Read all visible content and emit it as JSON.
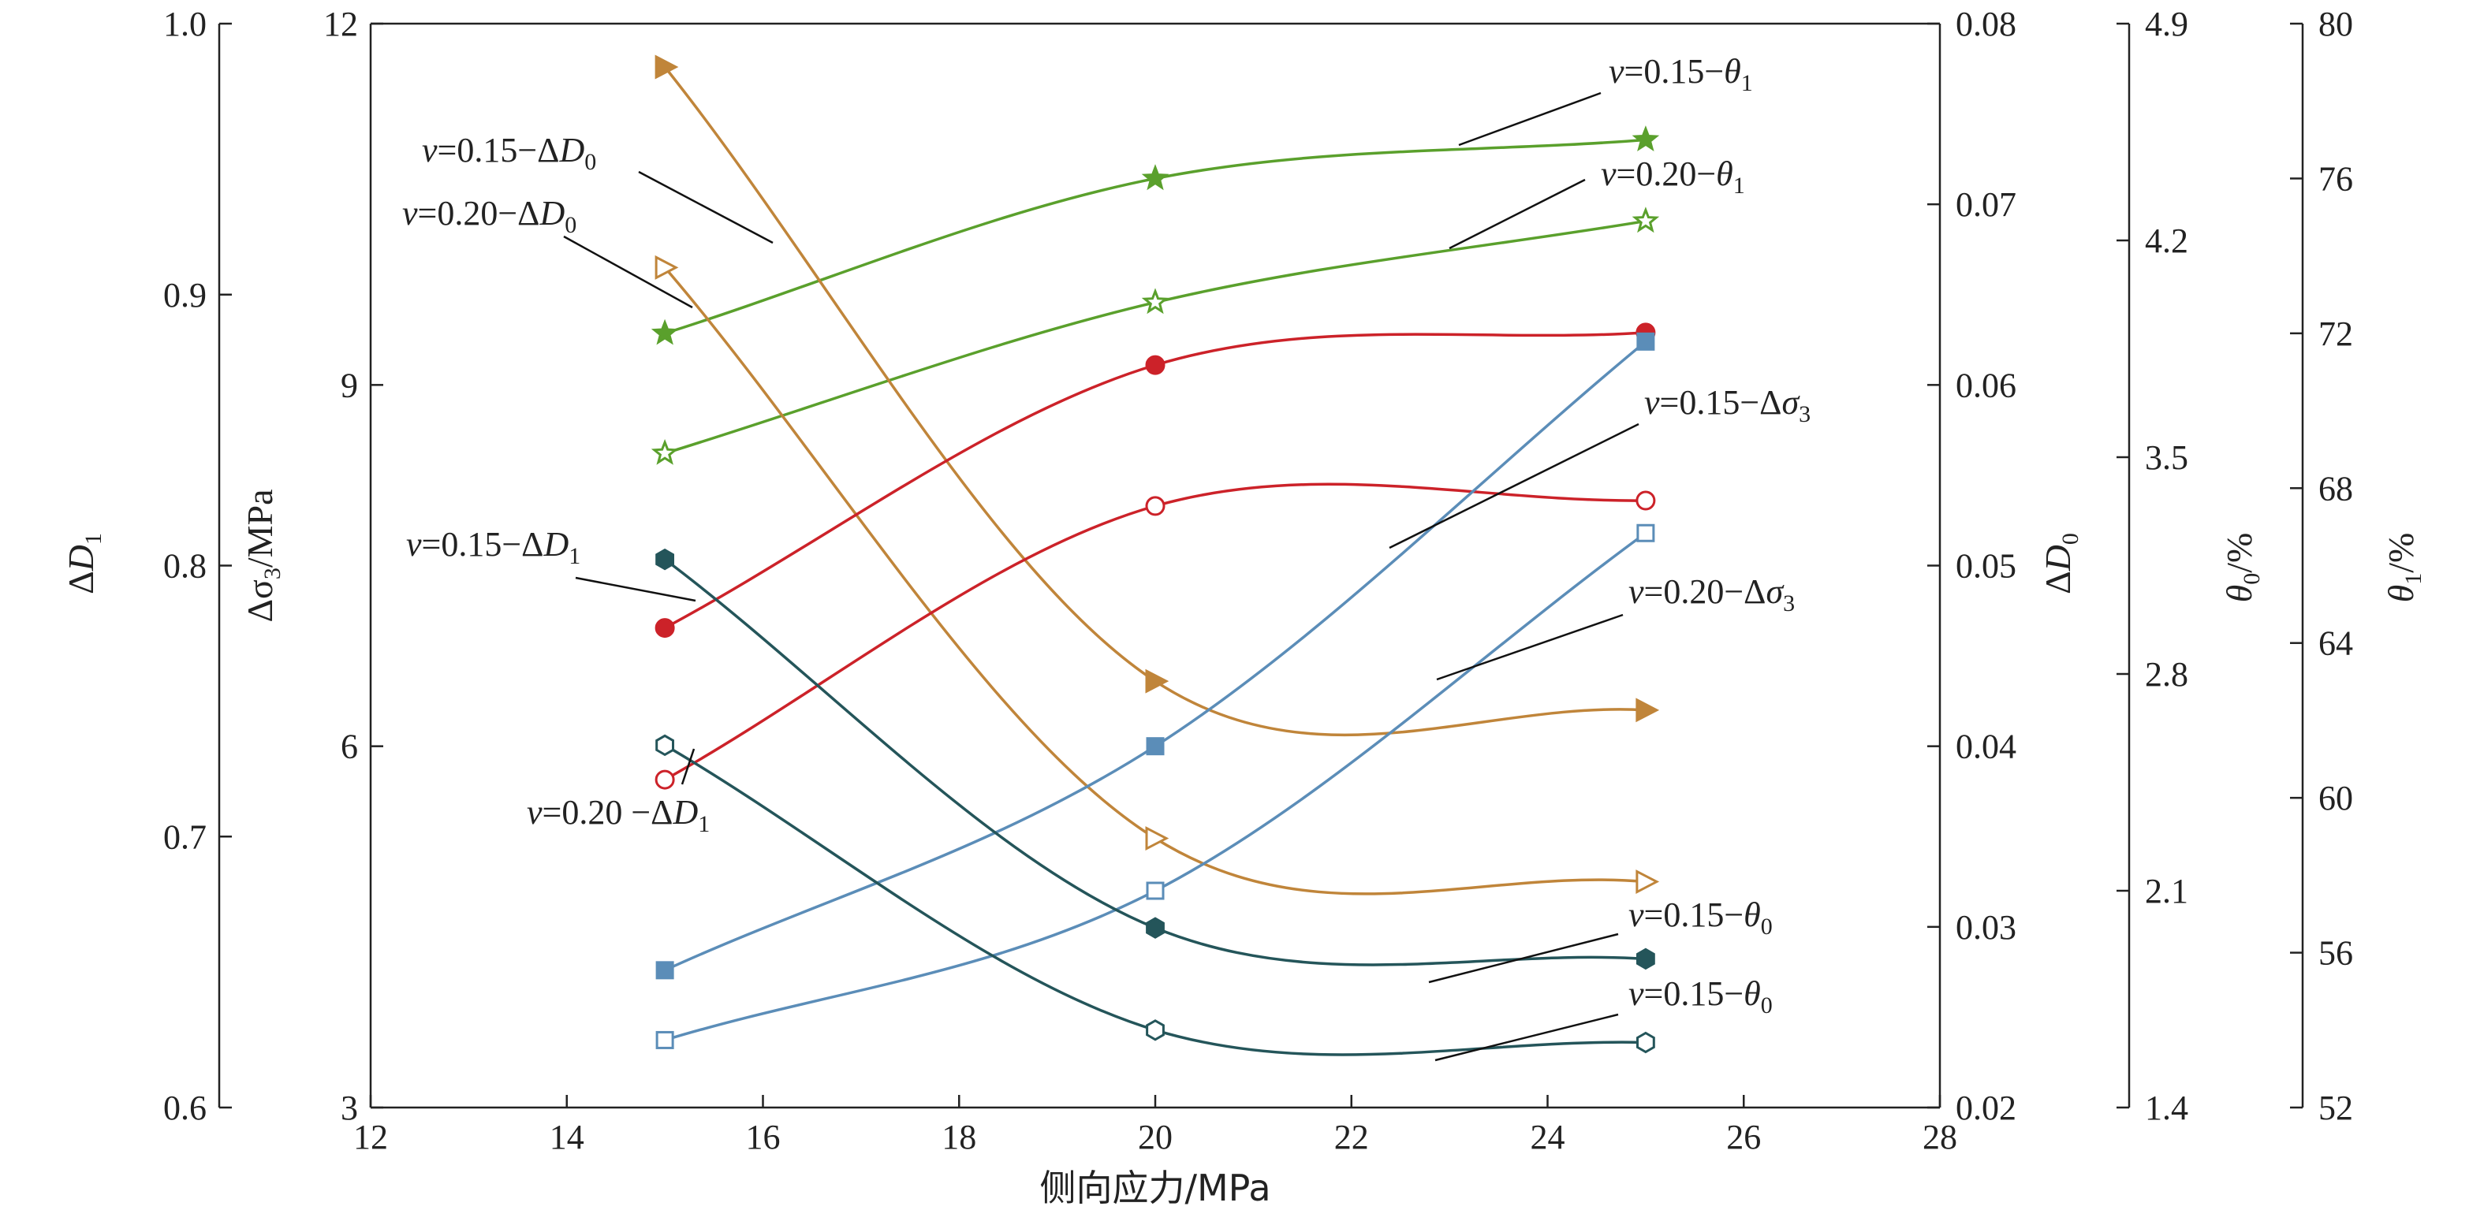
{
  "chart_data": {
    "type": "line",
    "xlabel": "侧向应力/MPa",
    "x_ticks": [
      "12",
      "14",
      "16",
      "18",
      "20",
      "22",
      "24",
      "26",
      "28"
    ],
    "xlim": [
      12,
      28
    ],
    "x": [
      15,
      20,
      25
    ],
    "axes": [
      {
        "id": "D1",
        "label": "ΔD",
        "label_sub": "1",
        "lim": [
          0.6,
          1.0
        ],
        "ticks": [
          "0.6",
          "0.7",
          "0.8",
          "0.9",
          "1.0"
        ]
      },
      {
        "id": "s3",
        "label": "Δσ",
        "label_sub": "3",
        "label_suffix": "/MPa",
        "lim": [
          3,
          12
        ],
        "ticks": [
          "3",
          "6",
          "9",
          "12"
        ]
      },
      {
        "id": "D0",
        "label": "ΔD",
        "label_sub": "0",
        "lim": [
          0.02,
          0.08
        ],
        "ticks": [
          "0.02",
          "0.03",
          "0.04",
          "0.05",
          "0.06",
          "0.07",
          "0.08"
        ]
      },
      {
        "id": "t0",
        "label": "θ",
        "label_sub": "0",
        "label_suffix": "/%",
        "lim": [
          1.4,
          4.9
        ],
        "ticks": [
          "1.4",
          "2.1",
          "2.8",
          "3.5",
          "4.2",
          "4.9"
        ]
      },
      {
        "id": "t1",
        "label": "θ",
        "label_sub": "1",
        "label_suffix": "/%",
        "lim": [
          52,
          80
        ],
        "ticks": [
          "52",
          "56",
          "60",
          "64",
          "68",
          "72",
          "76",
          "80"
        ]
      }
    ],
    "series": [
      {
        "name": "v=0.15-θ1",
        "axis": "t1",
        "values": [
          72.0,
          76.0,
          77.0
        ],
        "color": "#5aa02c",
        "marker": "star",
        "filled": true
      },
      {
        "name": "v=0.20-θ1",
        "axis": "t1",
        "values": [
          68.9,
          72.8,
          74.9
        ],
        "color": "#5aa02c",
        "marker": "star",
        "filled": false
      },
      {
        "name": "v=0.15-ΔD0",
        "axis": "D0",
        "values": [
          0.0776,
          0.0436,
          0.042
        ],
        "color": "#c0853a",
        "marker": "triangle",
        "filled": true
      },
      {
        "name": "v=0.20-ΔD0",
        "axis": "D0",
        "values": [
          0.0665,
          0.0349,
          0.0325
        ],
        "color": "#c0853a",
        "marker": "triangle",
        "filled": false
      },
      {
        "name": "v=0.15-ΔD1",
        "axis": "D1",
        "values": [
          0.777,
          0.874,
          0.886
        ],
        "color": "#cc2229",
        "marker": "circle",
        "filled": true
      },
      {
        "name": "v=0.20-ΔD1",
        "axis": "D1",
        "values": [
          0.721,
          0.822,
          0.824
        ],
        "color": "#cc2229",
        "marker": "circle",
        "filled": false
      },
      {
        "name": "v=0.15-Δσ3",
        "axis": "s3",
        "values": [
          4.14,
          6.0,
          9.36
        ],
        "color": "#5b8db8",
        "marker": "square",
        "filled": true
      },
      {
        "name": "v=0.20-Δσ3",
        "axis": "s3",
        "values": [
          3.56,
          4.8,
          7.77
        ],
        "color": "#5b8db8",
        "marker": "square",
        "filled": false
      },
      {
        "name": "v=0.15-θ0",
        "axis": "t0",
        "values": [
          3.17,
          1.98,
          1.88
        ],
        "color": "#24555a",
        "marker": "hexagon",
        "filled": true
      },
      {
        "name": "v=0.15-θ0",
        "axis": "t0",
        "values": [
          2.57,
          1.65,
          1.61
        ],
        "color": "#24555a",
        "marker": "hexagon",
        "filled": false
      }
    ],
    "annotations": [
      {
        "v": "v",
        "rest": "=0.15−θ",
        "sub": "1"
      },
      {
        "v": "v",
        "rest": "=0.20−θ",
        "sub": "1"
      },
      {
        "v": "v",
        "rest": "=0.15−ΔD",
        "sub": "0"
      },
      {
        "v": "v",
        "rest": "=0.20−ΔD",
        "sub": "0"
      },
      {
        "v": "v",
        "rest": "=0.15−ΔD",
        "sub": "1"
      },
      {
        "v": "v",
        "rest": "=0.20 −ΔD",
        "sub": "1"
      },
      {
        "v": "v",
        "rest": "=0.15−Δσ",
        "sub": "3"
      },
      {
        "v": "v",
        "rest": "=0.20−Δσ",
        "sub": "3"
      },
      {
        "v": "v",
        "rest": "=0.15−θ",
        "sub": "0"
      },
      {
        "v": "v",
        "rest": "=0.15−θ",
        "sub": "0"
      }
    ],
    "grid": false,
    "legend": "none"
  }
}
